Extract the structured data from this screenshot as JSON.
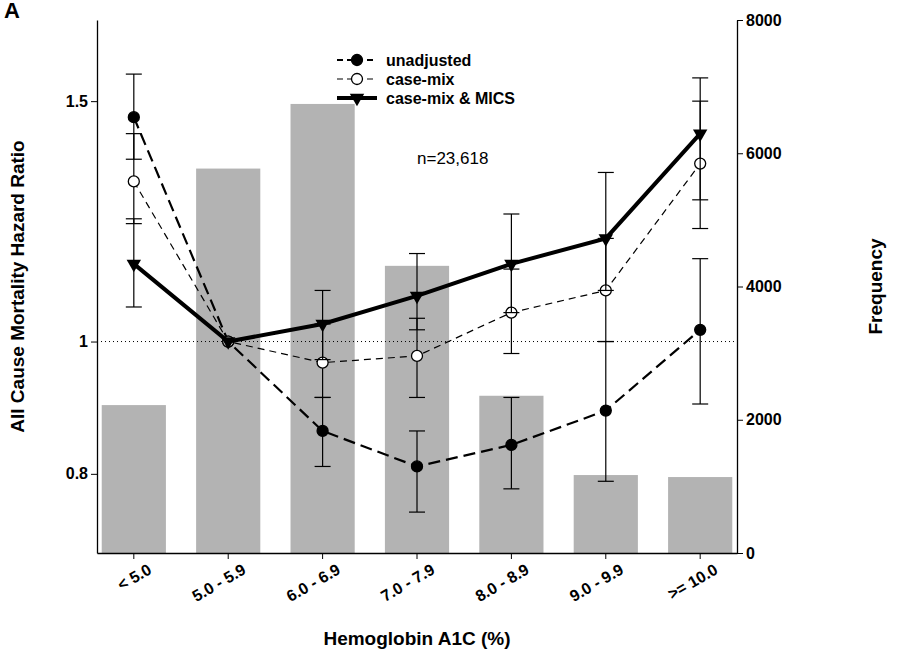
{
  "chart_data": {
    "type": "line",
    "panel_label": "A",
    "x_label": "Hemoglobin A1C (%)",
    "y_label": "All Cause Mortality Hazard Ratio",
    "y2_label": "Frequency",
    "annotation": "n=23,618",
    "categories": [
      "< 5.0",
      "5.0 - 5.9",
      "6.0 - 6.9",
      "7.0 - 7.9",
      "8.0 - 8.9",
      "9.0 - 9.9",
      ">= 10.0"
    ],
    "log": "y",
    "ylim": [
      0.7,
      1.72
    ],
    "yticks": [
      0.8,
      1,
      1.5
    ],
    "y2lim": [
      0,
      8000
    ],
    "y2ticks": [
      0,
      2000,
      4000,
      6000,
      8000
    ],
    "reference_line": 1,
    "legend": "top",
    "series": [
      {
        "type": "bar",
        "axis": "y2",
        "color": "#b3b3b3",
        "values": [
          2220,
          5770,
          6740,
          4310,
          2360,
          1170,
          1140
        ]
      },
      {
        "name": "unadjusted",
        "color": "#000000",
        "marker": "filled-circle",
        "line_style": "dashed",
        "values": [
          1.46,
          1.0,
          0.86,
          0.81,
          0.84,
          0.89,
          1.02
        ],
        "ci_low": [
          1.36,
          null,
          0.81,
          0.75,
          0.78,
          0.79,
          0.9
        ],
        "ci_high": [
          1.57,
          null,
          0.91,
          0.86,
          0.91,
          1.0,
          1.15
        ]
      },
      {
        "name": "case-mix",
        "color": "#000000",
        "marker": "open-circle",
        "line_style": "dashed",
        "values": [
          1.31,
          1.0,
          0.965,
          0.976,
          1.05,
          1.09,
          1.35
        ],
        "ci_low": [
          1.22,
          null,
          0.91,
          0.91,
          0.98,
          1.0,
          1.21
        ],
        "ci_high": [
          1.42,
          null,
          1.03,
          1.04,
          1.13,
          1.19,
          1.5
        ]
      },
      {
        "name": "case-mix & MICS",
        "color": "#000000",
        "marker": "triangle-down",
        "line_style": "solid",
        "values": [
          1.14,
          1.0,
          1.03,
          1.08,
          1.14,
          1.19,
          1.42
        ],
        "ci_low": [
          1.06,
          null,
          0.97,
          1.02,
          1.05,
          1.09,
          1.27
        ],
        "ci_high": [
          1.23,
          null,
          1.09,
          1.16,
          1.24,
          1.33,
          1.56
        ]
      }
    ]
  }
}
